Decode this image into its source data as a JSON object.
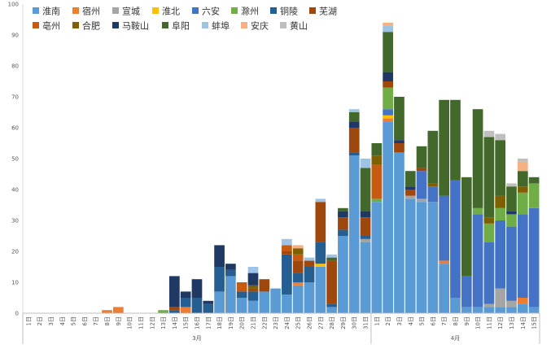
{
  "chart_data": {
    "type": "bar",
    "stacked": true,
    "title": "",
    "xlabel": "",
    "ylabel": "",
    "ylim": [
      0,
      100
    ],
    "yticks": [
      0,
      10,
      20,
      30,
      40,
      50,
      60,
      70,
      80,
      90,
      100
    ],
    "grid": false,
    "legend_position": "top-left",
    "months": [
      {
        "label": "3月",
        "start": 0,
        "count": 31
      },
      {
        "label": "4月",
        "start": 31,
        "count": 15
      }
    ],
    "categories": [
      "1日",
      "2日",
      "3日",
      "4日",
      "5日",
      "6日",
      "7日",
      "8日",
      "9日",
      "10日",
      "11日",
      "12日",
      "13日",
      "14日",
      "15日",
      "16日",
      "17日",
      "18日",
      "19日",
      "20日",
      "21日",
      "22日",
      "23日",
      "24日",
      "25日",
      "26日",
      "27日",
      "28日",
      "29日",
      "30日",
      "31日",
      "1日",
      "2日",
      "3日",
      "4日",
      "5日",
      "6日",
      "7日",
      "8日",
      "9日",
      "10日",
      "11日",
      "12日",
      "13日",
      "14日",
      "15日"
    ],
    "series": [
      {
        "name": "淮南",
        "color": "#5b9bd5",
        "values": [
          0,
          0,
          0,
          0,
          0,
          0,
          0,
          0,
          0,
          0,
          0,
          0,
          0,
          0,
          0,
          0,
          0,
          7,
          12,
          5,
          4,
          7,
          8,
          6,
          9,
          10,
          15,
          2,
          25,
          51,
          23,
          36,
          62,
          52,
          37,
          36,
          36,
          16,
          5,
          2,
          2,
          2,
          2,
          2,
          3,
          2
        ]
      },
      {
        "name": "宿州",
        "color": "#ed7d31",
        "values": [
          0,
          0,
          0,
          0,
          0,
          0,
          0,
          1,
          2,
          0,
          0,
          0,
          0,
          0,
          2,
          0,
          0,
          0,
          0,
          0,
          0,
          0,
          0,
          0,
          1,
          0,
          0,
          0,
          0,
          0,
          0,
          0,
          1,
          0,
          0,
          0,
          0,
          1,
          0,
          0,
          0,
          0,
          0,
          0,
          2,
          0
        ]
      },
      {
        "name": "宣城",
        "color": "#a5a5a5",
        "values": [
          0,
          0,
          0,
          0,
          0,
          0,
          0,
          0,
          0,
          0,
          0,
          0,
          0,
          0,
          0,
          0,
          0,
          0,
          0,
          0,
          0,
          0,
          0,
          0,
          0,
          0,
          0,
          0,
          0,
          0,
          1,
          0,
          0,
          0,
          1,
          1,
          0,
          0,
          0,
          0,
          0,
          1,
          6,
          2,
          0,
          0
        ]
      },
      {
        "name": "淮北",
        "color": "#ffc000",
        "values": [
          0,
          0,
          0,
          0,
          0,
          0,
          0,
          0,
          0,
          0,
          0,
          0,
          0,
          0,
          0,
          0,
          0,
          0,
          0,
          0,
          0,
          0,
          0,
          0,
          0,
          0,
          1,
          0,
          0,
          0,
          0,
          0,
          1,
          0,
          0,
          0,
          0,
          0,
          0,
          0,
          0,
          0,
          0,
          0,
          0,
          0
        ]
      },
      {
        "name": "六安",
        "color": "#4472c4",
        "values": [
          0,
          0,
          0,
          0,
          0,
          0,
          0,
          0,
          0,
          0,
          0,
          0,
          0,
          0,
          0,
          0,
          0,
          0,
          0,
          0,
          0,
          0,
          0,
          0,
          0,
          0,
          0,
          0,
          0,
          0,
          0,
          0,
          2,
          0,
          0,
          9,
          5,
          21,
          38,
          10,
          30,
          20,
          22,
          24,
          27,
          32
        ]
      },
      {
        "name": "滁州",
        "color": "#70ad47",
        "values": [
          0,
          0,
          0,
          0,
          0,
          0,
          0,
          0,
          0,
          0,
          0,
          0,
          1,
          0,
          0,
          0,
          0,
          0,
          0,
          0,
          0,
          0,
          0,
          0,
          0,
          0,
          0,
          0,
          0,
          0,
          0,
          1,
          7,
          0,
          0,
          0,
          0,
          0,
          0,
          0,
          2,
          6,
          4,
          4,
          7,
          8
        ]
      },
      {
        "name": "铜陵",
        "color": "#255e91",
        "values": [
          0,
          0,
          0,
          0,
          0,
          0,
          0,
          0,
          0,
          0,
          0,
          0,
          0,
          1,
          3,
          5,
          3,
          8,
          2,
          2,
          3,
          0,
          0,
          13,
          3,
          5,
          7,
          1,
          2,
          1,
          1,
          0,
          0,
          0,
          0,
          0,
          0,
          0,
          0,
          0,
          0,
          0,
          0,
          0,
          0,
          0
        ]
      },
      {
        "name": "芜湖",
        "color": "#9e480e",
        "values": [
          0,
          0,
          0,
          0,
          0,
          0,
          0,
          0,
          0,
          0,
          0,
          0,
          0,
          1,
          0,
          0,
          0,
          0,
          0,
          0,
          1,
          4,
          0,
          1,
          4,
          2,
          13,
          14,
          4,
          8,
          6,
          0,
          2,
          3,
          2,
          1,
          0,
          0,
          0,
          0,
          0,
          0,
          0,
          0,
          0,
          0
        ]
      },
      {
        "name": "亳州",
        "color": "#c55a11",
        "values": [
          0,
          0,
          0,
          0,
          0,
          0,
          0,
          0,
          0,
          0,
          0,
          0,
          0,
          0,
          0,
          0,
          0,
          0,
          0,
          3,
          0,
          0,
          0,
          2,
          2,
          0,
          0,
          0,
          0,
          0,
          0,
          11,
          0,
          0,
          0,
          0,
          0,
          0,
          0,
          0,
          0,
          0,
          0,
          0,
          0,
          0
        ]
      },
      {
        "name": "合肥",
        "color": "#7f6000",
        "values": [
          0,
          0,
          0,
          0,
          0,
          0,
          0,
          0,
          0,
          0,
          0,
          0,
          0,
          0,
          0,
          0,
          0,
          0,
          0,
          0,
          1,
          0,
          0,
          0,
          2,
          0,
          0,
          0,
          0,
          0,
          0,
          3,
          0,
          0,
          0,
          0,
          1,
          0,
          0,
          0,
          0,
          2,
          4,
          0,
          2,
          0
        ]
      },
      {
        "name": "马鞍山",
        "color": "#203864",
        "values": [
          0,
          0,
          0,
          0,
          0,
          0,
          0,
          0,
          0,
          0,
          0,
          0,
          0,
          10,
          2,
          6,
          1,
          7,
          2,
          0,
          4,
          0,
          0,
          0,
          0,
          0,
          0,
          0,
          2,
          2,
          2,
          0,
          3,
          1,
          1,
          0,
          0,
          0,
          0,
          0,
          0,
          0,
          0,
          1,
          0,
          0
        ]
      },
      {
        "name": "阜阳",
        "color": "#43682b",
        "values": [
          0,
          0,
          0,
          0,
          0,
          0,
          0,
          0,
          0,
          0,
          0,
          0,
          0,
          0,
          0,
          0,
          0,
          0,
          0,
          0,
          0,
          0,
          0,
          0,
          0,
          0,
          0,
          1,
          1,
          3,
          14,
          4,
          13,
          14,
          5,
          7,
          17,
          31,
          26,
          32,
          32,
          26,
          18,
          8,
          5,
          2
        ]
      },
      {
        "name": "蚌埠",
        "color": "#9dc3e6",
        "values": [
          0,
          0,
          0,
          0,
          0,
          0,
          0,
          0,
          0,
          0,
          0,
          0,
          0,
          0,
          0,
          0,
          0,
          0,
          0,
          0,
          2,
          0,
          0,
          2,
          0,
          1,
          1,
          1,
          0,
          1,
          3,
          0,
          2,
          0,
          0,
          0,
          0,
          0,
          0,
          0,
          0,
          0,
          0,
          0,
          0,
          0
        ]
      },
      {
        "name": "安庆",
        "color": "#f4b183",
        "values": [
          0,
          0,
          0,
          0,
          0,
          0,
          0,
          0,
          0,
          0,
          0,
          0,
          0,
          0,
          0,
          0,
          0,
          0,
          0,
          0,
          0,
          0,
          0,
          0,
          1,
          0,
          0,
          0,
          0,
          0,
          0,
          0,
          1,
          0,
          0,
          0,
          0,
          0,
          0,
          0,
          0,
          0,
          0,
          0,
          3,
          0
        ]
      },
      {
        "name": "黄山",
        "color": "#bfbfbf",
        "values": [
          0,
          0,
          0,
          0,
          0,
          0,
          0,
          0,
          0,
          0,
          0,
          0,
          0,
          0,
          0,
          0,
          0,
          0,
          0,
          0,
          0,
          0,
          0,
          0,
          0,
          0,
          0,
          0,
          0,
          0,
          0,
          0,
          0,
          0,
          0,
          0,
          0,
          0,
          0,
          0,
          0,
          2,
          2,
          1,
          1,
          0
        ]
      }
    ]
  }
}
